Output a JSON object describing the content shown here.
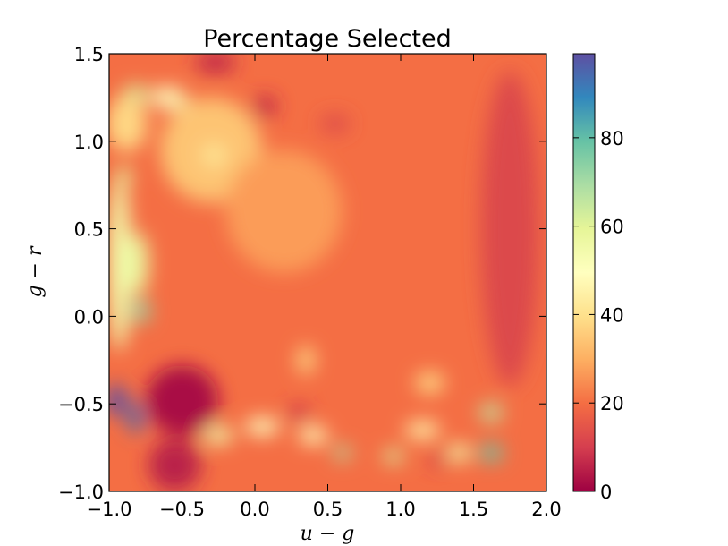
{
  "chart_data": {
    "type": "heatmap",
    "title": "Percentage Selected",
    "xlabel": "u − g",
    "ylabel": "g − r",
    "xlim": [
      -1.0,
      2.0
    ],
    "ylim": [
      -1.0,
      1.5
    ],
    "x_ticks": [
      {
        "value": -1.0,
        "label": "−1.0"
      },
      {
        "value": -0.5,
        "label": "−0.5"
      },
      {
        "value": 0.0,
        "label": "0.0"
      },
      {
        "value": 0.5,
        "label": "0.5"
      },
      {
        "value": 1.0,
        "label": "1.0"
      },
      {
        "value": 1.5,
        "label": "1.5"
      },
      {
        "value": 2.0,
        "label": "2.0"
      }
    ],
    "y_ticks": [
      {
        "value": 1.5,
        "label": "1.5"
      },
      {
        "value": 1.0,
        "label": "1.0"
      },
      {
        "value": 0.5,
        "label": "0.5"
      },
      {
        "value": 0.0,
        "label": "0.0"
      },
      {
        "value": -0.5,
        "label": "−0.5"
      },
      {
        "value": -1.0,
        "label": "−1.0"
      }
    ],
    "colorbar": {
      "colormap": "Spectral",
      "range": [
        0,
        99
      ],
      "ticks": [
        {
          "value": 0,
          "label": "0"
        },
        {
          "value": 20,
          "label": "20"
        },
        {
          "value": 40,
          "label": "40"
        },
        {
          "value": 60,
          "label": "60"
        },
        {
          "value": 80,
          "label": "80"
        }
      ]
    },
    "background_value": 20,
    "features": [
      {
        "x": -0.82,
        "y": 1.27,
        "rx": 0.09,
        "ry": 0.05,
        "value": 62
      },
      {
        "x": -0.6,
        "y": 1.25,
        "rx": 0.12,
        "ry": 0.06,
        "value": 50
      },
      {
        "x": -0.5,
        "y": 1.18,
        "rx": 0.04,
        "ry": 0.1,
        "value": 55
      },
      {
        "x": -0.88,
        "y": 1.1,
        "rx": 0.14,
        "ry": 0.16,
        "value": 38
      },
      {
        "x": -0.9,
        "y": 0.8,
        "rx": 0.05,
        "ry": 0.06,
        "value": 60
      },
      {
        "x": -0.93,
        "y": 0.3,
        "rx": 0.08,
        "ry": 0.5,
        "value": 55
      },
      {
        "x": -0.8,
        "y": 0.3,
        "rx": 0.07,
        "ry": 0.18,
        "value": 58
      },
      {
        "x": -0.78,
        "y": 0.03,
        "rx": 0.06,
        "ry": 0.07,
        "value": 72
      },
      {
        "x": -0.95,
        "y": -0.48,
        "rx": 0.07,
        "ry": 0.09,
        "value": 99
      },
      {
        "x": -0.82,
        "y": -0.58,
        "rx": 0.05,
        "ry": 0.09,
        "value": 95
      },
      {
        "x": -0.55,
        "y": -0.8,
        "rx": 0.05,
        "ry": 0.03,
        "value": 72
      },
      {
        "x": -0.5,
        "y": -0.48,
        "rx": 0.25,
        "ry": 0.2,
        "value": 2
      },
      {
        "x": -0.55,
        "y": -0.85,
        "rx": 0.18,
        "ry": 0.15,
        "value": 5
      },
      {
        "x": -0.27,
        "y": 1.45,
        "rx": 0.14,
        "ry": 0.06,
        "value": 6
      },
      {
        "x": 0.07,
        "y": 1.2,
        "rx": 0.08,
        "ry": 0.06,
        "value": 6
      },
      {
        "x": 0.55,
        "y": 1.1,
        "rx": 0.1,
        "ry": 0.05,
        "value": 12
      },
      {
        "x": 1.75,
        "y": 0.5,
        "rx": 0.2,
        "ry": 0.9,
        "value": 12
      },
      {
        "x": -0.3,
        "y": 0.95,
        "rx": 0.35,
        "ry": 0.3,
        "value": 34
      },
      {
        "x": -0.28,
        "y": 0.92,
        "rx": 0.08,
        "ry": 0.06,
        "value": 42
      },
      {
        "x": 0.2,
        "y": 0.6,
        "rx": 0.4,
        "ry": 0.35,
        "value": 27
      },
      {
        "x": 0.35,
        "y": -0.25,
        "rx": 0.06,
        "ry": 0.08,
        "value": 38
      },
      {
        "x": 1.2,
        "y": -0.38,
        "rx": 0.1,
        "ry": 0.06,
        "value": 38
      },
      {
        "x": 1.62,
        "y": -0.55,
        "rx": 0.08,
        "ry": 0.05,
        "value": 66
      },
      {
        "x": 1.62,
        "y": -0.78,
        "rx": 0.08,
        "ry": 0.05,
        "value": 78
      },
      {
        "x": 1.4,
        "y": -0.78,
        "rx": 0.08,
        "ry": 0.05,
        "value": 55
      },
      {
        "x": 0.6,
        "y": -0.78,
        "rx": 0.06,
        "ry": 0.04,
        "value": 68
      },
      {
        "x": 0.95,
        "y": -0.8,
        "rx": 0.07,
        "ry": 0.04,
        "value": 62
      },
      {
        "x": -0.25,
        "y": -0.68,
        "rx": 0.1,
        "ry": 0.05,
        "value": 55
      },
      {
        "x": 0.05,
        "y": -0.63,
        "rx": 0.12,
        "ry": 0.05,
        "value": 50
      },
      {
        "x": 0.4,
        "y": -0.68,
        "rx": 0.1,
        "ry": 0.05,
        "value": 48
      },
      {
        "x": 1.15,
        "y": -0.65,
        "rx": 0.12,
        "ry": 0.05,
        "value": 45
      },
      {
        "x": 0.3,
        "y": -0.55,
        "rx": 0.08,
        "ry": 0.04,
        "value": 8
      },
      {
        "x": 1.25,
        "y": -0.82,
        "rx": 0.05,
        "ry": 0.04,
        "value": 8
      }
    ]
  }
}
